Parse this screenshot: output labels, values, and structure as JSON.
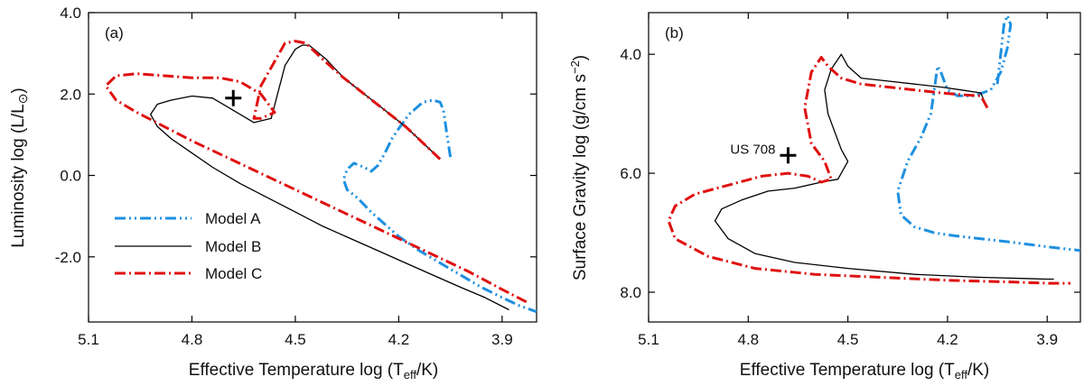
{
  "chart_data": [
    {
      "type": "line",
      "panel_label": "(a)",
      "xlabel": "Effective Temperature  log (T_eff/K)",
      "ylabel": "Luminosity  log (L/L_⊙)",
      "xlim": [
        5.1,
        3.8
      ],
      "ylim": [
        -3.6,
        4.0
      ],
      "x_ticks": [
        "5.1",
        "4.8",
        "4.5",
        "4.2",
        "3.9"
      ],
      "y_ticks": [
        "4.0",
        "2.0",
        "0.0",
        "-2.0"
      ],
      "y_tick_values": [
        4.0,
        2.0,
        0.0,
        -2.0
      ],
      "legend": "bottom-left",
      "series": [
        {
          "name": "Model A",
          "color": "#1e90e0",
          "style": "dash-dot-dot",
          "x": [
            4.05,
            4.06,
            4.07,
            4.08,
            4.1,
            4.13,
            4.17,
            4.2,
            4.22,
            4.24,
            4.26,
            4.28,
            4.3,
            4.33,
            4.35,
            4.36,
            4.35,
            4.32,
            4.28,
            4.24,
            4.2,
            4.14,
            4.08,
            4.02,
            3.96,
            3.9,
            3.85,
            3.8
          ],
          "y": [
            0.45,
            1.0,
            1.6,
            1.8,
            1.85,
            1.8,
            1.5,
            1.15,
            0.9,
            0.55,
            0.25,
            0.1,
            0.2,
            0.3,
            0.15,
            -0.1,
            -0.35,
            -0.55,
            -0.9,
            -1.2,
            -1.5,
            -1.85,
            -2.15,
            -2.45,
            -2.75,
            -3.0,
            -3.2,
            -3.35
          ]
        },
        {
          "name": "Model B",
          "color": "#000000",
          "style": "solid",
          "x": [
            4.08,
            4.13,
            4.18,
            4.24,
            4.3,
            4.36,
            4.41,
            4.46,
            4.48,
            4.5,
            4.53,
            4.57,
            4.62,
            4.68,
            4.74,
            4.8,
            4.86,
            4.9,
            4.92,
            4.9,
            4.86,
            4.8,
            4.74,
            4.66,
            4.58,
            4.5,
            4.42,
            4.34,
            4.26,
            4.18,
            4.1,
            4.02,
            3.95,
            3.88
          ],
          "y": [
            0.4,
            0.8,
            1.2,
            1.6,
            2.0,
            2.4,
            2.85,
            3.2,
            3.2,
            3.1,
            2.7,
            1.4,
            1.3,
            1.6,
            1.9,
            1.95,
            1.85,
            1.75,
            1.5,
            1.2,
            0.9,
            0.55,
            0.2,
            -0.2,
            -0.55,
            -0.9,
            -1.25,
            -1.55,
            -1.85,
            -2.15,
            -2.45,
            -2.75,
            -3.0,
            -3.3
          ]
        },
        {
          "name": "Model C",
          "color": "#e01010",
          "style": "dash-dot",
          "x": [
            4.08,
            4.13,
            4.18,
            4.24,
            4.3,
            4.36,
            4.42,
            4.47,
            4.5,
            4.53,
            4.56,
            4.6,
            4.62,
            4.6,
            4.56,
            4.6,
            4.66,
            4.72,
            4.8,
            4.88,
            4.96,
            5.02,
            5.05,
            5.02,
            4.96,
            4.88,
            4.8,
            4.7,
            4.6,
            4.5,
            4.4,
            4.3,
            4.2,
            4.1,
            4.0,
            3.9,
            3.82
          ],
          "y": [
            0.4,
            0.8,
            1.2,
            1.6,
            2.0,
            2.4,
            2.85,
            3.25,
            3.3,
            3.25,
            2.8,
            2.2,
            1.4,
            1.4,
            1.55,
            2.0,
            2.3,
            2.4,
            2.4,
            2.45,
            2.5,
            2.45,
            2.2,
            1.85,
            1.55,
            1.2,
            0.85,
            0.45,
            0.05,
            -0.35,
            -0.75,
            -1.15,
            -1.55,
            -1.95,
            -2.35,
            -2.8,
            -3.15
          ]
        }
      ],
      "points": [
        {
          "x": 4.68,
          "y": 1.9,
          "marker": "+",
          "label": ""
        }
      ]
    },
    {
      "type": "line",
      "panel_label": "(b)",
      "xlabel": "Effective Temperature  log (T_eff/K)",
      "ylabel": "Surface Gravity  log (g/cm s^-2)",
      "xlim": [
        5.1,
        3.8
      ],
      "ylim": [
        8.5,
        3.3
      ],
      "x_ticks": [
        "5.1",
        "4.8",
        "4.5",
        "4.2",
        "3.9"
      ],
      "y_ticks": [
        "4.0",
        "6.0",
        "8.0"
      ],
      "y_tick_values": [
        4.0,
        6.0,
        8.0
      ],
      "series": [
        {
          "name": "Model A",
          "color": "#1e90e0",
          "style": "dash-dot-dot",
          "x": [
            4.05,
            4.04,
            4.03,
            4.02,
            4.01,
            4.02,
            4.04,
            4.07,
            4.12,
            4.17,
            4.2,
            4.22,
            4.23,
            4.24,
            4.25,
            4.28,
            4.32,
            4.35,
            4.34,
            4.3,
            4.24,
            4.18,
            4.1,
            4.02,
            3.95,
            3.88,
            3.8
          ],
          "y": [
            4.5,
            4.0,
            3.5,
            3.35,
            3.5,
            3.9,
            4.3,
            4.6,
            4.7,
            4.7,
            4.6,
            4.3,
            4.2,
            4.6,
            5.0,
            5.4,
            5.8,
            6.3,
            6.7,
            6.9,
            7.0,
            7.05,
            7.1,
            7.15,
            7.2,
            7.25,
            7.3
          ]
        },
        {
          "name": "Model B",
          "color": "#000000",
          "style": "solid",
          "x": [
            4.08,
            4.1,
            4.16,
            4.22,
            4.3,
            4.38,
            4.46,
            4.5,
            4.52,
            4.55,
            4.57,
            4.56,
            4.52,
            4.5,
            4.53,
            4.58,
            4.66,
            4.74,
            4.82,
            4.88,
            4.9,
            4.86,
            4.78,
            4.66,
            4.5,
            4.3,
            4.1,
            3.9,
            3.88
          ],
          "y": [
            4.9,
            4.65,
            4.6,
            4.55,
            4.5,
            4.45,
            4.4,
            4.2,
            4.0,
            4.25,
            4.6,
            5.0,
            5.6,
            5.8,
            6.1,
            6.15,
            6.25,
            6.3,
            6.45,
            6.6,
            6.8,
            7.1,
            7.35,
            7.5,
            7.6,
            7.7,
            7.75,
            7.78,
            7.78
          ]
        },
        {
          "name": "Model C",
          "color": "#e01010",
          "style": "dash-dot",
          "x": [
            4.08,
            4.1,
            4.16,
            4.22,
            4.3,
            4.38,
            4.46,
            4.52,
            4.56,
            4.58,
            4.61,
            4.63,
            4.61,
            4.57,
            4.55,
            4.58,
            4.62,
            4.68,
            4.76,
            4.86,
            4.96,
            5.02,
            5.04,
            5.02,
            4.92,
            4.78,
            4.6,
            4.4,
            4.2,
            4.0,
            3.9,
            3.83
          ],
          "y": [
            4.9,
            4.7,
            4.68,
            4.65,
            4.6,
            4.55,
            4.5,
            4.4,
            4.2,
            4.05,
            4.3,
            4.9,
            5.5,
            5.8,
            6.1,
            6.15,
            6.05,
            6.0,
            6.05,
            6.2,
            6.35,
            6.55,
            6.8,
            7.1,
            7.4,
            7.6,
            7.7,
            7.75,
            7.8,
            7.83,
            7.85,
            7.85
          ]
        }
      ],
      "points": [
        {
          "x": 4.68,
          "y": 5.7,
          "marker": "+",
          "label": "US 708"
        }
      ]
    }
  ]
}
